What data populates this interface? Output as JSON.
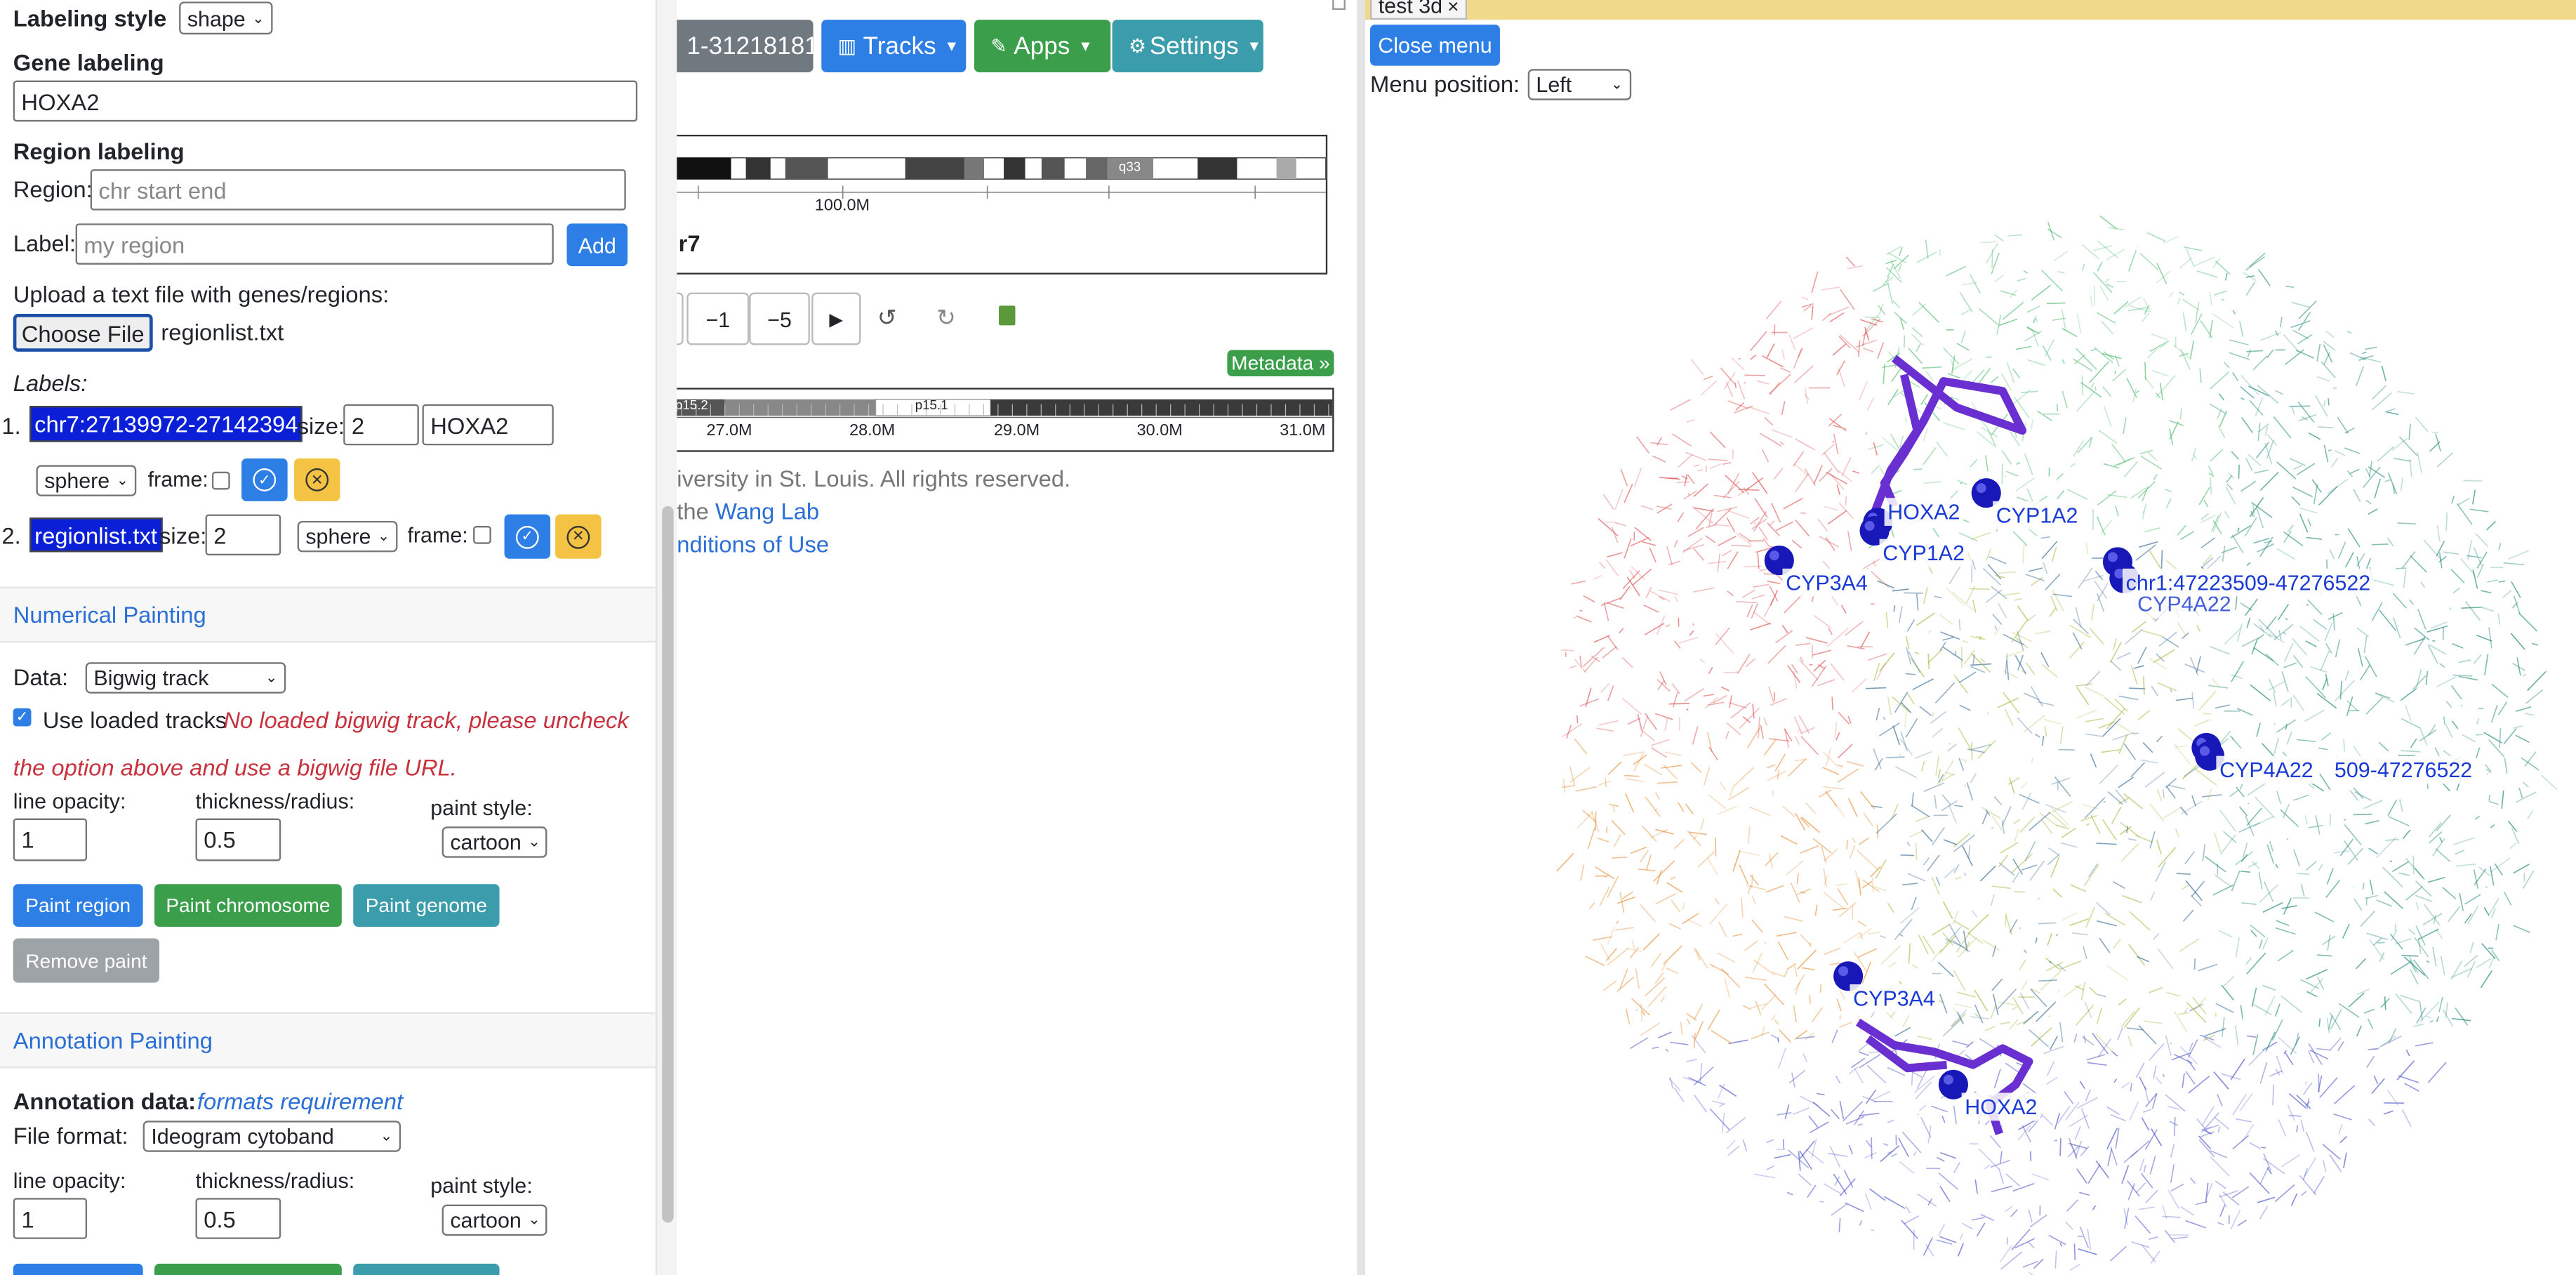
{
  "left_panel": {
    "labeling_style": {
      "label": "Labeling style",
      "value": "shape"
    },
    "gene_labeling": {
      "title": "Gene labeling",
      "value": "HOXA2"
    },
    "region_labeling": {
      "title": "Region labeling",
      "region_label": "Region:",
      "region_placeholder": "chr start end",
      "label_label": "Label:",
      "label_placeholder": "my region",
      "add_button": "Add"
    },
    "upload": {
      "text": "Upload a text file with genes/regions:",
      "button": "Choose File",
      "filename": "regionlist.txt"
    },
    "labels": {
      "title": "Labels:",
      "items": [
        {
          "index": "1.",
          "name": "chr7:27139972-27142394",
          "size_label": "size:",
          "size": "2",
          "text": "HOXA2",
          "shape": "sphere",
          "frame_label": "frame:"
        },
        {
          "index": "2.",
          "name": "regionlist.txt",
          "size_label": "size:",
          "size": "2",
          "shape": "sphere",
          "frame_label": "frame:"
        }
      ]
    },
    "numerical": {
      "title": "Numerical Painting",
      "data_label": "Data:",
      "data_value": "Bigwig track",
      "use_loaded": "Use loaded tracks",
      "warning_1": "No loaded bigwig track, please uncheck",
      "warning_2": "the option above and use a bigwig file URL.",
      "opacity_label": "line opacity:",
      "opacity": "1",
      "thickness_label": "thickness/radius:",
      "thickness": "0.5",
      "style_label": "paint style:",
      "style": "cartoon",
      "paint_region": "Paint region",
      "paint_chromosome": "Paint chromosome",
      "paint_genome": "Paint genome",
      "remove_paint": "Remove paint"
    },
    "annotation": {
      "title": "Annotation Painting",
      "data_label": "Annotation data:",
      "formats_link": "formats requirement",
      "file_format_label": "File format:",
      "file_format": "Ideogram cytoband",
      "opacity_label": "line opacity:",
      "opacity": "1",
      "thickness_label": "thickness/radius:",
      "thickness": "0.5",
      "style_label": "paint style:",
      "style": "cartoon"
    }
  },
  "browser": {
    "locus": "1-31218181",
    "tracks": "Tracks",
    "apps": "Apps",
    "settings": "Settings",
    "ideogram": {
      "band": "q33",
      "tick": "100.0M",
      "chrom": "r7"
    },
    "controls": [
      "−1",
      "−5",
      "▶",
      "↺",
      "↻"
    ],
    "metadata": "Metadata »",
    "ruler": {
      "bands": [
        "p15.2",
        "p15.1"
      ],
      "ticks": [
        "27.0M",
        "28.0M",
        "29.0M",
        "30.0M",
        "31.0M"
      ]
    },
    "footer": {
      "line1": "iversity in St. Louis. All rights reserved.",
      "line2_pre": "the ",
      "line2_link": "Wang Lab",
      "line3": "nditions of Use"
    }
  },
  "viewer": {
    "tab": "test 3d",
    "close": "×",
    "close_menu": "Close menu",
    "menu_position_label": "Menu position:",
    "menu_position": "Left",
    "markers": [
      "HOXA2",
      "CYP1A2",
      "CYP1A2",
      "CYP3A4",
      "chr1:47223509-47276522",
      "CYP4A22",
      "CYP4A22",
      "509-47276522",
      "CYP3A4",
      "HOXA2"
    ]
  }
}
